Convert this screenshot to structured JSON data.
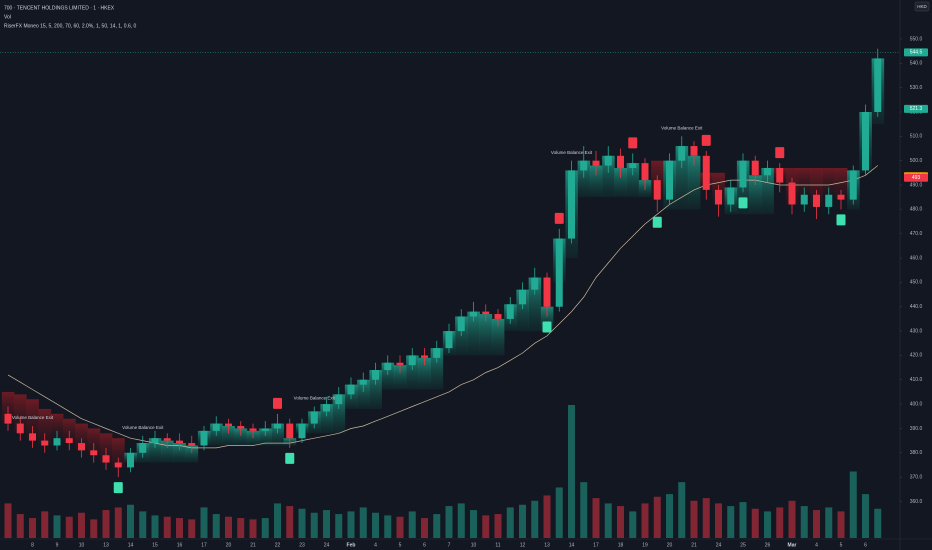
{
  "chart_data": {
    "type": "candlestick",
    "title": "700 · TENCENT HOLDINGS LIMITED · 1 · HKEX",
    "subtitle": "Vol",
    "indicator": "RiserFX Moneo 15, 5, 200, 70, 60, 2.0%, 1, 50, 14, 1, 0.6, 0",
    "currency": "HKD",
    "categories": [
      null,
      null,
      "8",
      null,
      "9",
      null,
      "10",
      null,
      "13",
      null,
      "14",
      null,
      "15",
      null,
      "16",
      null,
      "17",
      null,
      "20",
      null,
      "21",
      null,
      "22",
      null,
      "23",
      null,
      "24",
      null,
      "Feb",
      null,
      "4",
      null,
      "5",
      null,
      "6",
      null,
      "7",
      null,
      "10",
      null,
      "11",
      null,
      "12",
      null,
      "13",
      null,
      "14",
      null,
      "17",
      null,
      "18",
      null,
      "19",
      null,
      "20",
      null,
      "21",
      null,
      "24",
      null,
      "25",
      null,
      "26",
      null,
      "Mar",
      null,
      "4",
      null,
      "5",
      null,
      "6",
      null
    ],
    "open": [
      396,
      392,
      388,
      385,
      383,
      386,
      384,
      381,
      379,
      376,
      374,
      380,
      384,
      386,
      385,
      384,
      383,
      389,
      392,
      391,
      390,
      389,
      390,
      392,
      386,
      392,
      397,
      400,
      404,
      408,
      410,
      414,
      417,
      416,
      420,
      419,
      423,
      430,
      436,
      438,
      437,
      435,
      441,
      447,
      452,
      440,
      468,
      496,
      500,
      498,
      502,
      497,
      499,
      492,
      484,
      500,
      506,
      502,
      488,
      482,
      489,
      500,
      494,
      497,
      491,
      482,
      486,
      481,
      486,
      484,
      496,
      520
    ],
    "high": [
      399,
      395,
      391,
      388,
      389,
      389,
      386,
      384,
      382,
      378,
      382,
      387,
      389,
      388,
      388,
      387,
      391,
      395,
      394,
      393,
      392,
      393,
      396,
      394,
      394,
      399,
      403,
      407,
      411,
      413,
      417,
      420,
      420,
      423,
      423,
      426,
      433,
      439,
      442,
      441,
      439,
      444,
      450,
      456,
      454,
      472,
      500,
      506,
      504,
      506,
      505,
      503,
      501,
      494,
      503,
      510,
      508,
      504,
      490,
      492,
      503,
      502,
      500,
      499,
      493,
      489,
      488,
      489,
      488,
      498,
      523,
      546
    ],
    "low": [
      389,
      385,
      382,
      380,
      381,
      381,
      378,
      376,
      373,
      370,
      372,
      378,
      382,
      382,
      381,
      380,
      381,
      387,
      388,
      387,
      386,
      387,
      388,
      382,
      384,
      390,
      395,
      398,
      402,
      405,
      408,
      412,
      413,
      414,
      416,
      417,
      421,
      428,
      434,
      434,
      432,
      433,
      439,
      445,
      436,
      438,
      466,
      493,
      494,
      495,
      493,
      494,
      488,
      479,
      482,
      497,
      498,
      484,
      477,
      479,
      487,
      490,
      491,
      487,
      478,
      479,
      476,
      478,
      480,
      482,
      494,
      518
    ],
    "close": [
      392,
      388,
      385,
      383,
      386,
      384,
      381,
      379,
      376,
      374,
      380,
      384,
      386,
      385,
      384,
      383,
      389,
      392,
      391,
      390,
      389,
      390,
      392,
      386,
      392,
      397,
      400,
      404,
      408,
      410,
      414,
      417,
      416,
      420,
      419,
      423,
      430,
      436,
      438,
      437,
      435,
      441,
      447,
      452,
      440,
      468,
      496,
      500,
      498,
      502,
      497,
      499,
      492,
      484,
      500,
      506,
      502,
      488,
      482,
      489,
      500,
      494,
      497,
      491,
      482,
      486,
      481,
      486,
      484,
      496,
      520,
      542
    ],
    "volume": [
      260,
      180,
      150,
      200,
      170,
      160,
      190,
      140,
      210,
      230,
      250,
      200,
      170,
      160,
      150,
      140,
      230,
      180,
      160,
      150,
      140,
      150,
      260,
      240,
      220,
      190,
      210,
      180,
      200,
      230,
      190,
      170,
      160,
      200,
      150,
      180,
      240,
      260,
      210,
      170,
      180,
      230,
      250,
      280,
      320,
      380,
      1000,
      420,
      300,
      260,
      240,
      200,
      260,
      310,
      330,
      420,
      280,
      300,
      260,
      240,
      270,
      220,
      200,
      230,
      280,
      240,
      210,
      230,
      200,
      500,
      330,
      220
    ],
    "ma": [
      412,
      409,
      406,
      403,
      400,
      397,
      394,
      392,
      390,
      388,
      386,
      385,
      384,
      383,
      383,
      382,
      382,
      382,
      383,
      383,
      383,
      384,
      384,
      384,
      385,
      386,
      387,
      388,
      390,
      391,
      393,
      395,
      397,
      399,
      401,
      403,
      405,
      408,
      410,
      413,
      415,
      418,
      421,
      425,
      428,
      433,
      438,
      444,
      452,
      458,
      464,
      469,
      474,
      478,
      482,
      485,
      488,
      490,
      491,
      492,
      492,
      492,
      491,
      490,
      490,
      490,
      490,
      490,
      491,
      492,
      494,
      498
    ],
    "trail": [
      405,
      404,
      402,
      398,
      396,
      394,
      392,
      390,
      388,
      386,
      376,
      376,
      376,
      376,
      376,
      376,
      383,
      383,
      383,
      383,
      383,
      383,
      383,
      383,
      388,
      388,
      388,
      388,
      398,
      398,
      398,
      406,
      406,
      406,
      406,
      406,
      420,
      420,
      420,
      420,
      420,
      430,
      430,
      430,
      430,
      450,
      460,
      485,
      485,
      485,
      485,
      485,
      485,
      500,
      480,
      480,
      480,
      495,
      495,
      478,
      478,
      478,
      478,
      497,
      497,
      497,
      497,
      497,
      497,
      480,
      495,
      515
    ],
    "up_color": "#22ab94",
    "down_color": "#f23645",
    "ma_color": "#c9b99b",
    "signals": [
      {
        "index": 9,
        "type": "buy"
      },
      {
        "index": 22,
        "type": "sell"
      },
      {
        "index": 23,
        "type": "buy"
      },
      {
        "index": 44,
        "type": "buy"
      },
      {
        "index": 45,
        "type": "sell"
      },
      {
        "index": 51,
        "type": "sell"
      },
      {
        "index": 53,
        "type": "buy"
      },
      {
        "index": 57,
        "type": "sell"
      },
      {
        "index": 60,
        "type": "buy"
      },
      {
        "index": 63,
        "type": "sell"
      },
      {
        "index": 68,
        "type": "buy"
      }
    ],
    "annotations": [
      {
        "index": 2,
        "text": "Volume Balance Exit"
      },
      {
        "index": 11,
        "text": "Volume Balance Exit"
      },
      {
        "index": 25,
        "text": "Volume Balance Exit"
      },
      {
        "index": 46,
        "text": "Volume Balance Exit"
      },
      {
        "index": 55,
        "text": "Volume Balance Exit"
      }
    ],
    "ylim": [
      345,
      566
    ],
    "vlim": [
      0,
      1000
    ],
    "yticks": [
      {
        "value": 360,
        "label": "360.0"
      },
      {
        "value": 370,
        "label": "370.0"
      },
      {
        "value": 380,
        "label": "380.0"
      },
      {
        "value": 390,
        "label": "390.0"
      },
      {
        "value": 400,
        "label": "400.0"
      },
      {
        "value": 410,
        "label": "410.0"
      },
      {
        "value": 420,
        "label": "420.0"
      },
      {
        "value": 430,
        "label": "430.0"
      },
      {
        "value": 440,
        "label": "440.0"
      },
      {
        "value": 450,
        "label": "450.0"
      },
      {
        "value": 460,
        "label": "460.0"
      },
      {
        "value": 470,
        "label": "470.0"
      },
      {
        "value": 480,
        "label": "480.0"
      },
      {
        "value": 490,
        "label": "490.0"
      },
      {
        "value": 500,
        "label": "500.0"
      },
      {
        "value": 510,
        "label": "510.0"
      },
      {
        "value": 520,
        "label": "520.0"
      },
      {
        "value": 530,
        "label": "530.0"
      },
      {
        "value": 540,
        "label": "540.0"
      },
      {
        "value": 550,
        "label": "550.0"
      }
    ],
    "price_tags": [
      {
        "value": 544.5,
        "color": "#22ab94"
      },
      {
        "value": 521.3,
        "color": "#22ab94"
      },
      {
        "value": 493.6,
        "color": "#f7a600"
      },
      {
        "value": 493.0,
        "color": "#f23645"
      }
    ],
    "grid": false
  }
}
